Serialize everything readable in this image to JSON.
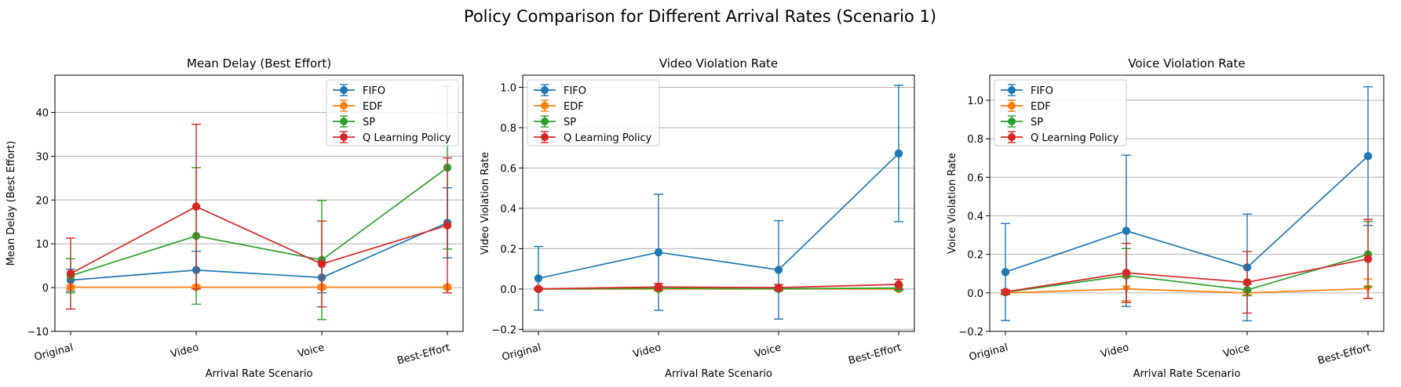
{
  "suptitle": "Policy Comparison for Different Arrival Rates (Scenario 1)",
  "colors": {
    "FIFO": "#1f77b4",
    "EDF": "#ff7f0e",
    "SP": "#2ca02c",
    "Q Learning Policy": "#d62728",
    "grid": "#b0b0b0"
  },
  "chart_data": [
    {
      "type": "line",
      "title": "Mean Delay (Best Effort)",
      "xlabel": "Arrival Rate Scenario",
      "ylabel": "Mean Delay (Best Effort)",
      "categories": [
        "Original",
        "Video",
        "Voice",
        "Best-Effort"
      ],
      "ylim": [
        -10,
        48.5
      ],
      "yticks": [
        -10,
        0,
        10,
        20,
        30,
        40
      ],
      "ytick_labels": [
        "−10",
        "0",
        "10",
        "20",
        "30",
        "40"
      ],
      "grid": "y",
      "legend": "top-right",
      "series": [
        {
          "name": "FIFO",
          "values": [
            1.7,
            4.0,
            2.3,
            14.8
          ],
          "err": [
            2.5,
            4.3,
            3.5,
            8.0
          ],
          "marker": "o"
        },
        {
          "name": "EDF",
          "values": [
            0.1,
            0.1,
            0.1,
            0.1
          ],
          "err": [
            0.4,
            0.4,
            0.4,
            0.4
          ],
          "marker": "o"
        },
        {
          "name": "SP",
          "values": [
            2.7,
            11.8,
            6.3,
            27.4
          ],
          "err": [
            3.9,
            15.6,
            13.6,
            18.6
          ],
          "marker": "o"
        },
        {
          "name": "Q Learning Policy",
          "values": [
            3.2,
            18.5,
            5.4,
            14.2
          ],
          "err": [
            8.1,
            18.8,
            9.8,
            15.4
          ],
          "marker": "o"
        }
      ]
    },
    {
      "type": "line",
      "title": "Video Violation Rate",
      "xlabel": "Arrival Rate Scenario",
      "ylabel": "Video Violation Rate",
      "categories": [
        "Original",
        "Video",
        "Voice",
        "Best-Effort"
      ],
      "ylim": [
        -0.21,
        1.06
      ],
      "yticks": [
        -0.2,
        0.0,
        0.2,
        0.4,
        0.6,
        0.8,
        1.0
      ],
      "ytick_labels": [
        "−0.2",
        "0.0",
        "0.2",
        "0.4",
        "0.6",
        "0.8",
        "1.0"
      ],
      "grid": "y",
      "legend": "top-left",
      "series": [
        {
          "name": "FIFO",
          "values": [
            0.053,
            0.182,
            0.095,
            0.672
          ],
          "err": [
            0.158,
            0.288,
            0.244,
            0.338
          ],
          "marker": "o"
        },
        {
          "name": "EDF",
          "values": [
            0.0,
            0.0,
            0.0,
            0.0
          ],
          "err": [
            0.003,
            0.003,
            0.003,
            0.003
          ],
          "marker": "o"
        },
        {
          "name": "SP",
          "values": [
            0.0,
            0.003,
            0.001,
            0.005
          ],
          "err": [
            0.005,
            0.01,
            0.008,
            0.012
          ],
          "marker": "o"
        },
        {
          "name": "Q Learning Policy",
          "values": [
            0.001,
            0.01,
            0.007,
            0.023
          ],
          "err": [
            0.005,
            0.018,
            0.015,
            0.025
          ],
          "marker": "o"
        }
      ]
    },
    {
      "type": "line",
      "title": "Voice Violation Rate",
      "xlabel": "Arrival Rate Scenario",
      "ylabel": "Voice Violation Rate",
      "categories": [
        "Original",
        "Video",
        "Voice",
        "Best-Effort"
      ],
      "ylim": [
        -0.2,
        1.13
      ],
      "yticks": [
        -0.2,
        0.0,
        0.2,
        0.4,
        0.6,
        0.8,
        1.0
      ],
      "ytick_labels": [
        "−0.2",
        "0.0",
        "0.2",
        "0.4",
        "0.6",
        "0.8",
        "1.0"
      ],
      "grid": "y",
      "legend": "top-left",
      "series": [
        {
          "name": "FIFO",
          "values": [
            0.108,
            0.322,
            0.132,
            0.71
          ],
          "err": [
            0.252,
            0.393,
            0.277,
            0.36
          ],
          "marker": "o"
        },
        {
          "name": "EDF",
          "values": [
            0.0,
            0.02,
            0.0,
            0.022
          ],
          "err": [
            0.01,
            0.06,
            0.01,
            0.05
          ],
          "marker": "v"
        },
        {
          "name": "SP",
          "values": [
            0.003,
            0.09,
            0.015,
            0.2
          ],
          "err": [
            0.01,
            0.14,
            0.03,
            0.17
          ],
          "marker": "o"
        },
        {
          "name": "Q Learning Policy",
          "values": [
            0.005,
            0.104,
            0.055,
            0.176
          ],
          "err": [
            0.01,
            0.153,
            0.16,
            0.205
          ],
          "marker": "o"
        }
      ]
    }
  ]
}
